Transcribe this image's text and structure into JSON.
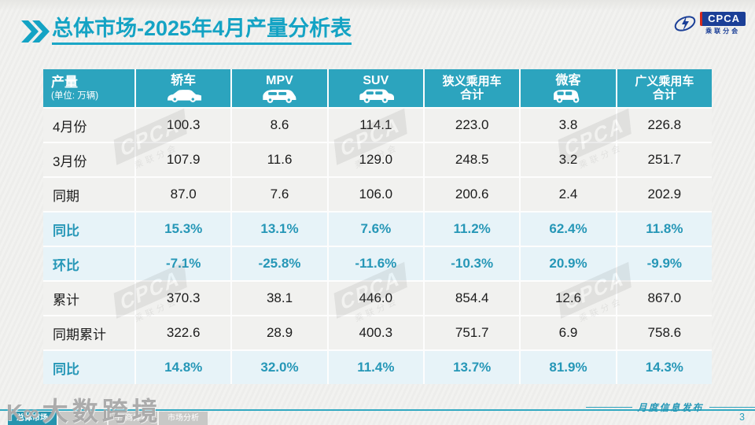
{
  "slide": {
    "title": {
      "prefix": "总体市场",
      "suffix": "-2025年4月产量分析表"
    },
    "logo": {
      "text": "CPCA",
      "subtext": "乘联分会"
    },
    "footer": {
      "tabs": [
        {
          "label": "总体市场",
          "active": true
        },
        {
          "label": "",
          "active": false
        },
        {
          "label": "厂商排名",
          "active": false
        },
        {
          "label": "市场分析",
          "active": false
        }
      ],
      "publish_label": "月度信息发布",
      "page_number": "3"
    },
    "watermark": {
      "brand": "CPCA",
      "brand_sub": "乘联分会",
      "site_logo": "K∞",
      "site": "大数跨境"
    }
  },
  "table": {
    "unit_header": {
      "title": "产量",
      "unit": "(单位: 万辆)"
    },
    "columns": [
      {
        "label": "轿车",
        "icon": "sedan-car-icon"
      },
      {
        "label": "MPV",
        "icon": "mpv-car-icon"
      },
      {
        "label": "SUV",
        "icon": "suv-car-icon"
      },
      {
        "label": "狭义乘用车\n合计",
        "icon": null
      },
      {
        "label": "微客",
        "icon": "microvan-icon"
      },
      {
        "label": "广义乘用车\n合计",
        "icon": null
      }
    ],
    "rows": [
      {
        "label": "4月份",
        "type": "normal",
        "values": [
          "100.3",
          "8.6",
          "114.1",
          "223.0",
          "3.8",
          "226.8"
        ]
      },
      {
        "label": "3月份",
        "type": "normal",
        "values": [
          "107.9",
          "11.6",
          "129.0",
          "248.5",
          "3.2",
          "251.7"
        ]
      },
      {
        "label": "同期",
        "type": "normal",
        "values": [
          "87.0",
          "7.6",
          "106.0",
          "200.6",
          "2.4",
          "202.9"
        ]
      },
      {
        "label": "同比",
        "type": "percent",
        "values": [
          "15.3%",
          "13.1%",
          "7.6%",
          "11.2%",
          "62.4%",
          "11.8%"
        ]
      },
      {
        "label": "环比",
        "type": "percent",
        "values": [
          "-7.1%",
          "-25.8%",
          "-11.6%",
          "-10.3%",
          "20.9%",
          "-9.9%"
        ]
      },
      {
        "label": "累计",
        "type": "normal",
        "values": [
          "370.3",
          "38.1",
          "446.0",
          "854.4",
          "12.6",
          "867.0"
        ]
      },
      {
        "label": "同期累计",
        "type": "normal",
        "values": [
          "322.6",
          "28.9",
          "400.3",
          "751.7",
          "6.9",
          "758.6"
        ]
      },
      {
        "label": "同比",
        "type": "percent",
        "values": [
          "14.8%",
          "32.0%",
          "11.4%",
          "13.7%",
          "81.9%",
          "14.3%"
        ]
      }
    ]
  },
  "colors": {
    "accent_teal": "#14a3c4",
    "header_bg": "#2ca4be",
    "percent_text": "#2697b7",
    "percent_row_bg": "#e7f3f8",
    "row_bg": "#f1f1ef",
    "active_tab": "#2594ae",
    "logo_blue": "#1b3f97"
  }
}
